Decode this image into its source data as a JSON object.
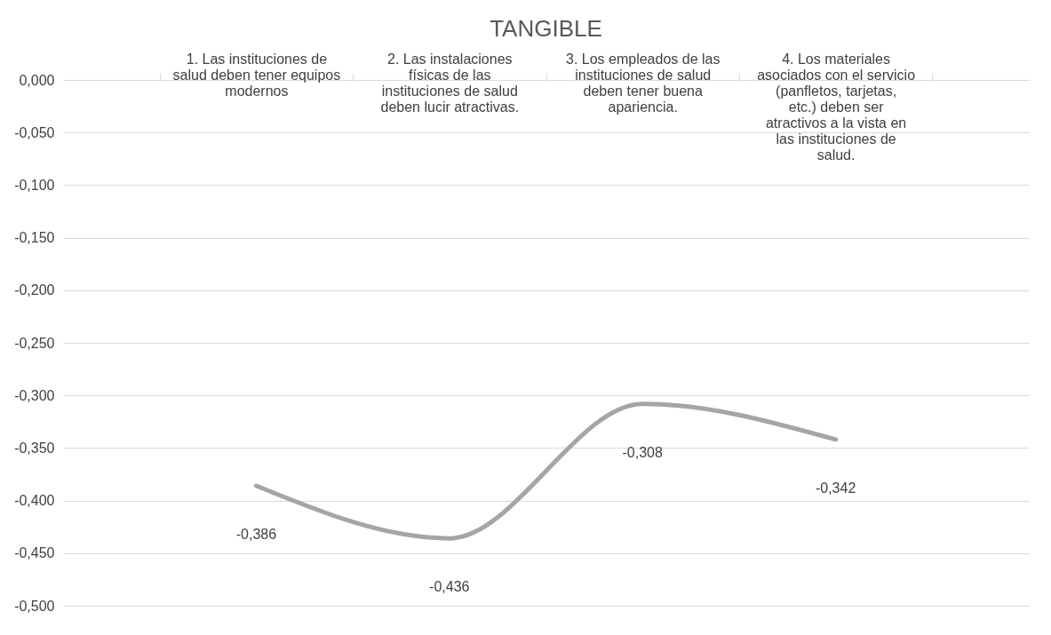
{
  "chart_data": {
    "type": "line",
    "title": "TANGIBLE",
    "categories": [
      "1. Las instituciones de salud deben tener equipos modernos",
      "2. Las instalaciones físicas de las instituciones de salud deben lucir atractivas.",
      "3. Los empleados de las instituciones de salud deben tener buena apariencia.",
      "4. Los materiales asociados con el servicio (panfletos, tarjetas, etc.) deben ser atractivos a la vista en las instituciones de salud."
    ],
    "series": [
      {
        "color": "#a5a5a5",
        "values": [
          -0.386,
          -0.436,
          -0.308,
          -0.342
        ]
      }
    ],
    "value_labels": [
      "-0,386",
      "-0,436",
      "-0,308",
      "-0,342"
    ],
    "ylim": [
      -0.5,
      0
    ],
    "yticks": [
      {
        "value": 0,
        "label": "0,000"
      },
      {
        "value": -0.05,
        "label": "-0,050"
      },
      {
        "value": -0.1,
        "label": "-0,100"
      },
      {
        "value": -0.15,
        "label": "-0,150"
      },
      {
        "value": -0.2,
        "label": "-0,200"
      },
      {
        "value": -0.25,
        "label": "-0,250"
      },
      {
        "value": -0.3,
        "label": "-0,300"
      },
      {
        "value": -0.35,
        "label": "-0,350"
      },
      {
        "value": -0.4,
        "label": "-0,400"
      },
      {
        "value": -0.45,
        "label": "-0,450"
      },
      {
        "value": -0.5,
        "label": "-0,500"
      }
    ],
    "grid": "y",
    "legend": false,
    "marker": "none",
    "line_style": "solid"
  }
}
